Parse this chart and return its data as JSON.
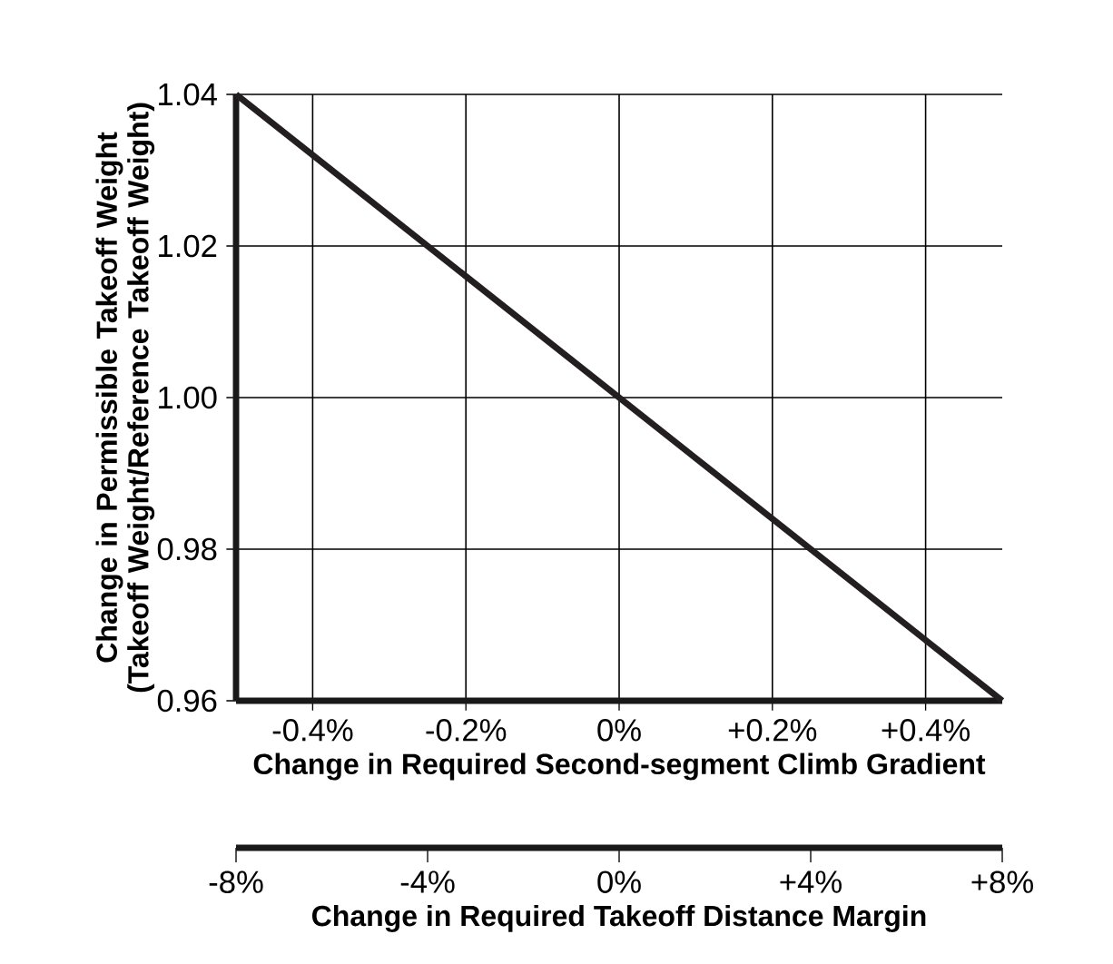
{
  "chart_data": {
    "type": "line",
    "xlabel": "Change in Required Second-segment Climb Gradient",
    "ylabel": "Change in Permissible Takeoff Weight (Takeoff Weight/Reference Takeoff Weight)",
    "x2label": "Change in Required Takeoff Distance Margin",
    "xlim": [
      -0.5,
      0.5
    ],
    "xticks": [
      {
        "value": -0.4,
        "label": "-0.4%"
      },
      {
        "value": -0.2,
        "label": "-0.2%"
      },
      {
        "value": 0,
        "label": "0%"
      },
      {
        "value": 0.2,
        "label": "+0.2%"
      },
      {
        "value": 0.4,
        "label": "+0.4%"
      }
    ],
    "ylim": [
      0.96,
      1.04
    ],
    "yticks": [
      {
        "value": 0.96,
        "label": "0.96"
      },
      {
        "value": 0.98,
        "label": "0.98"
      },
      {
        "value": 1.0,
        "label": "1.00"
      },
      {
        "value": 1.02,
        "label": "1.02"
      },
      {
        "value": 1.04,
        "label": "1.04"
      }
    ],
    "x2lim": [
      -8,
      8
    ],
    "x2ticks": [
      {
        "value": -8,
        "label": "-8%"
      },
      {
        "value": -4,
        "label": "-4%"
      },
      {
        "value": 0,
        "label": "0%"
      },
      {
        "value": 4,
        "label": "+4%"
      },
      {
        "value": 8,
        "label": "+8%"
      }
    ],
    "x": [
      -0.5,
      0.5
    ],
    "grid": true,
    "marker": "none",
    "line_style": "solid",
    "series": [
      {
        "color": "#231f20",
        "values": [
          1.04,
          0.96
        ]
      }
    ]
  }
}
